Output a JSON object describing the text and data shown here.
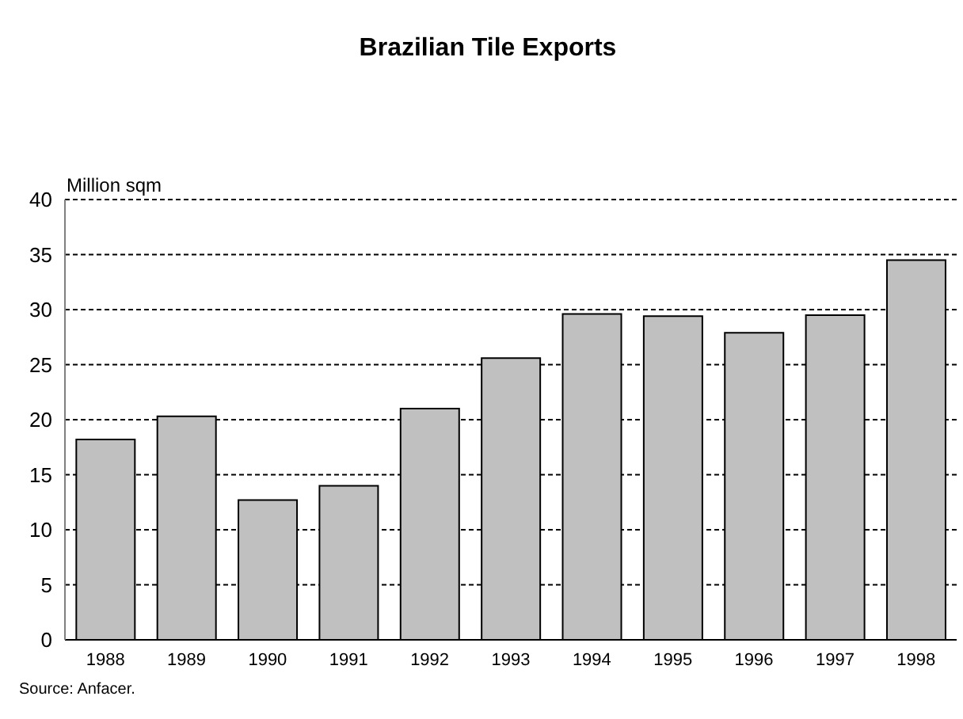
{
  "chart_data": {
    "type": "bar",
    "title": "Brazilian Tile Exports",
    "ylabel": "Million sqm",
    "categories": [
      "1988",
      "1989",
      "1990",
      "1991",
      "1992",
      "1993",
      "1994",
      "1995",
      "1996",
      "1997",
      "1998"
    ],
    "values": [
      18.2,
      20.3,
      12.7,
      14.0,
      21.0,
      25.6,
      29.6,
      29.4,
      27.9,
      29.5,
      34.5
    ],
    "color": "#c0c0c0",
    "ylim": [
      0,
      40
    ],
    "yticks": [
      0,
      5,
      10,
      15,
      20,
      25,
      30,
      35,
      40
    ],
    "grid": "y",
    "annotations": [
      "Source: Anfacer."
    ]
  }
}
